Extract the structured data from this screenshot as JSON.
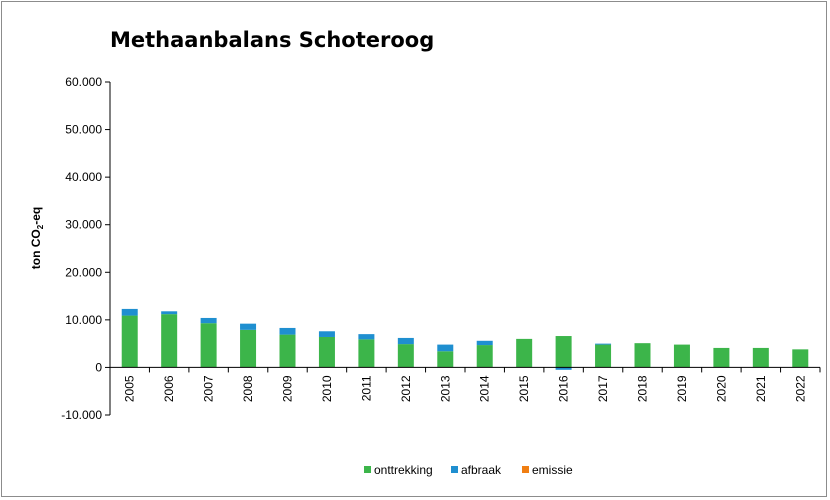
{
  "chart_data": {
    "type": "bar",
    "stacked": true,
    "title": "Methaanbalans Schoteroog",
    "ylabel": "ton CO₂-eq",
    "ylabel_main": "ton CO",
    "ylabel_sub": "2",
    "ylabel_tail": "-eq",
    "xlabel": "",
    "ylim": [
      -10000,
      60000
    ],
    "yticks": [
      -10000,
      0,
      10000,
      20000,
      30000,
      40000,
      50000,
      60000
    ],
    "ytick_labels": [
      "-10.000",
      "0",
      "10.000",
      "20.000",
      "30.000",
      "40.000",
      "50.000",
      "60.000"
    ],
    "grid": false,
    "legend_position": "bottom",
    "categories": [
      "2005",
      "2006",
      "2007",
      "2008",
      "2009",
      "2010",
      "2011",
      "2012",
      "2013",
      "2014",
      "2015",
      "2016",
      "2017",
      "2018",
      "2019",
      "2020",
      "2021",
      "2022"
    ],
    "series": [
      {
        "name": "onttrekking",
        "color": "#3cb54a",
        "values": [
          10900,
          11200,
          9300,
          7900,
          6900,
          6400,
          5900,
          4900,
          3400,
          4700,
          6000,
          6600,
          4800,
          5100,
          4800,
          4100,
          4100,
          3800
        ]
      },
      {
        "name": "afbraak",
        "color": "#1f8fd0",
        "values": [
          1400,
          600,
          1100,
          1300,
          1400,
          1200,
          1100,
          1300,
          1400,
          900,
          0,
          -500,
          200,
          0,
          0,
          0,
          0,
          0
        ]
      },
      {
        "name": "emissie",
        "color": "#f07e12",
        "values": [
          0,
          0,
          0,
          0,
          0,
          0,
          0,
          0,
          0,
          0,
          0,
          0,
          0,
          0,
          0,
          0,
          0,
          0
        ]
      }
    ]
  }
}
